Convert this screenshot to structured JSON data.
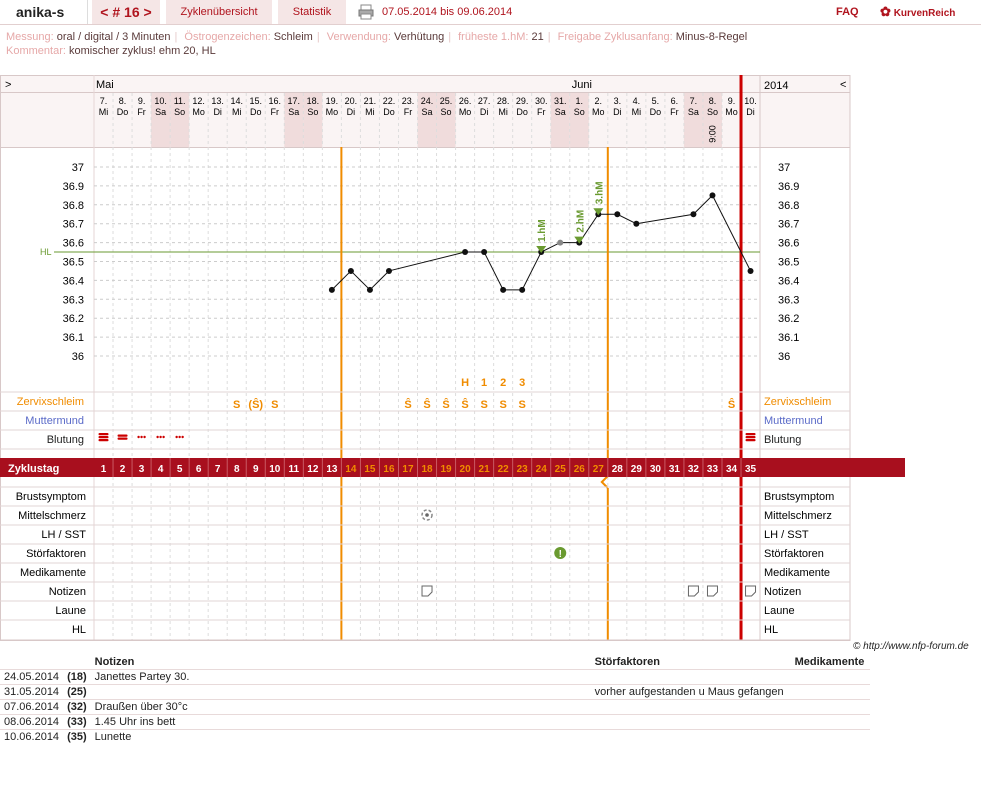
{
  "header": {
    "user": "anika-s",
    "cycle_nav": "< # 16 >",
    "overview": "Zyklenübersicht",
    "stats": "Statistik",
    "date_range": "07.05.2014 bis 09.06.2014",
    "faq": "FAQ",
    "logo": "KurvenReich"
  },
  "info": {
    "measure_label": "Messung:",
    "measure": "oral / digital / 3 Minuten",
    "estro_label": "Östrogenzeichen:",
    "estro": "Schleim",
    "use_label": "Verwendung:",
    "use": "Verhütung",
    "hm_label": "früheste 1.hM:",
    "hm": "21",
    "release_label": "Freigabe Zyklusanfang:",
    "release": "Minus-8-Regel",
    "comment_label": "Kommentar:",
    "comment": "komischer zyklus! ehm 20, HL"
  },
  "colors": {
    "accent": "#a80f1e",
    "orange": "#f08c00",
    "hl": "#6a9a30",
    "blue": "#5a6ac8"
  },
  "chart_data": {
    "type": "line",
    "month_labels": [
      {
        "day": 0,
        "label": "Mai"
      },
      {
        "day": 25,
        "label": "Juni"
      }
    ],
    "year_label": "2014",
    "arrow_left": ">",
    "arrow_right": "<",
    "dates": [
      "7.",
      "8.",
      "9.",
      "10.",
      "11.",
      "12.",
      "13.",
      "14.",
      "15.",
      "16.",
      "17.",
      "18.",
      "19.",
      "20.",
      "21.",
      "22.",
      "23.",
      "24.",
      "25.",
      "26.",
      "27.",
      "28.",
      "29.",
      "30.",
      "31.",
      "1.",
      "2.",
      "3.",
      "4.",
      "5.",
      "6.",
      "7.",
      "8.",
      "9.",
      "10."
    ],
    "weekdays": [
      "Mi",
      "Do",
      "Fr",
      "Sa",
      "So",
      "Mo",
      "Di",
      "Mi",
      "Do",
      "Fr",
      "Sa",
      "So",
      "Mo",
      "Di",
      "Mi",
      "Do",
      "Fr",
      "Sa",
      "So",
      "Mo",
      "Di",
      "Mi",
      "Do",
      "Fr",
      "Sa",
      "So",
      "Mo",
      "Di",
      "Mi",
      "Do",
      "Fr",
      "Sa",
      "So",
      "Mo",
      "Di"
    ],
    "weekend_days": [
      4,
      5,
      11,
      12,
      18,
      19,
      25,
      26,
      32,
      33
    ],
    "time_note": {
      "day": 33,
      "text": "9:00"
    },
    "y_ticks": [
      "37",
      "36.9",
      "36.8",
      "36.7",
      "36.6",
      "36.5",
      "36.4",
      "36.3",
      "36.2",
      "36.1",
      "36"
    ],
    "ylim": [
      36.0,
      37.0
    ],
    "hl_value": 36.55,
    "hl_label": "HL",
    "temps": [
      {
        "day": 13,
        "t": 36.35
      },
      {
        "day": 14,
        "t": 36.45
      },
      {
        "day": 15,
        "t": 36.35
      },
      {
        "day": 16,
        "t": 36.45
      },
      {
        "day": 20,
        "t": 36.55
      },
      {
        "day": 21,
        "t": 36.55
      },
      {
        "day": 22,
        "t": 36.35
      },
      {
        "day": 23,
        "t": 36.35
      },
      {
        "day": 24,
        "t": 36.55
      },
      {
        "day": 25,
        "t": 36.6,
        "gray": true
      },
      {
        "day": 26,
        "t": 36.6
      },
      {
        "day": 27,
        "t": 36.75
      },
      {
        "day": 28,
        "t": 36.75
      },
      {
        "day": 29,
        "t": 36.7
      },
      {
        "day": 32,
        "t": 36.75
      },
      {
        "day": 33,
        "t": 36.85
      },
      {
        "day": 35,
        "t": 36.45
      }
    ],
    "hm_labels": [
      {
        "day": 24,
        "text": "1.hM"
      },
      {
        "day": 26,
        "text": "2.hM"
      },
      {
        "day": 27,
        "text": "3.hM"
      }
    ],
    "peak_labels": [
      {
        "day": 20,
        "text": "H"
      },
      {
        "day": 21,
        "text": "1"
      },
      {
        "day": 22,
        "text": "2"
      },
      {
        "day": 23,
        "text": "3"
      }
    ],
    "mucus": [
      {
        "day": 8,
        "text": "S"
      },
      {
        "day": 9,
        "text": "(Ŝ)"
      },
      {
        "day": 10,
        "text": "S"
      },
      {
        "day": 17,
        "text": "Ŝ"
      },
      {
        "day": 18,
        "text": "Ŝ"
      },
      {
        "day": 19,
        "text": "Ŝ"
      },
      {
        "day": 20,
        "text": "Ŝ"
      },
      {
        "day": 21,
        "text": "S"
      },
      {
        "day": 22,
        "text": "S"
      },
      {
        "day": 23,
        "text": "S"
      },
      {
        "day": 34,
        "text": "Ŝ"
      }
    ],
    "bleeding": [
      {
        "day": 1,
        "level": "heavy"
      },
      {
        "day": 2,
        "level": "medium"
      },
      {
        "day": 3,
        "level": "light"
      },
      {
        "day": 4,
        "level": "light"
      },
      {
        "day": 5,
        "level": "light"
      },
      {
        "day": 35,
        "level": "heavy"
      }
    ],
    "cycle_label": "Zyklustag",
    "cycle_days": [
      "1",
      "2",
      "3",
      "4",
      "5",
      "6",
      "7",
      "8",
      "9",
      "10",
      "11",
      "12",
      "13",
      "14",
      "15",
      "16",
      "17",
      "18",
      "19",
      "20",
      "21",
      "22",
      "23",
      "24",
      "25",
      "26",
      "27",
      "28",
      "29",
      "30",
      "31",
      "32",
      "33",
      "34",
      "35"
    ],
    "orange_cycle_days": [
      14,
      15,
      16,
      17,
      18,
      19,
      20,
      21,
      22,
      23,
      24,
      25,
      26,
      27
    ],
    "rows_top": [
      "Zervixschleim",
      "Muttermund",
      "Blutung"
    ],
    "rows_bottom": [
      "Brustsymptom",
      "Mittelschmerz",
      "LH / SST",
      "Störfaktoren",
      "Medikamente",
      "Notizen",
      "Laune",
      "HL"
    ],
    "pain": [
      {
        "day": 18
      }
    ],
    "disturb": [
      {
        "day": 25
      }
    ],
    "note_icons": [
      18,
      32,
      33,
      35
    ]
  },
  "copyright": "© http://www.nfp-forum.de",
  "notes": {
    "headers": [
      "Notizen",
      "Störfaktoren",
      "Medikamente"
    ],
    "rows": [
      {
        "date": "24.05.2014",
        "day": "(18)",
        "note": "Janettes Partey 30.",
        "disturb": "",
        "med": ""
      },
      {
        "date": "31.05.2014",
        "day": "(25)",
        "note": "",
        "disturb": "vorher aufgestanden u Maus gefangen",
        "med": ""
      },
      {
        "date": "07.06.2014",
        "day": "(32)",
        "note": "Draußen über 30°c",
        "disturb": "",
        "med": ""
      },
      {
        "date": "08.06.2014",
        "day": "(33)",
        "note": "1.45 Uhr ins bett",
        "disturb": "",
        "med": ""
      },
      {
        "date": "10.06.2014",
        "day": "(35)",
        "note": "Lunette",
        "disturb": "",
        "med": ""
      }
    ]
  }
}
